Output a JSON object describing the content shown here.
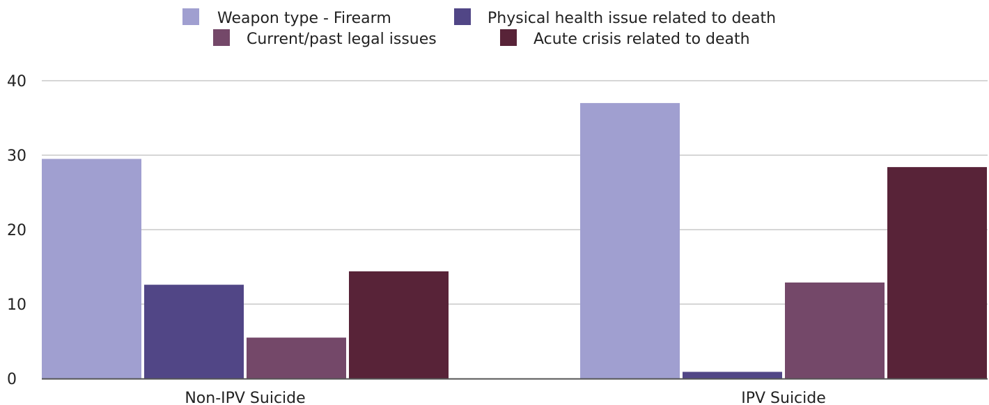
{
  "chart_data": {
    "type": "bar",
    "categories": [
      "Non-IPV Suicide",
      "IPV Suicide"
    ],
    "series": [
      {
        "name": "Weapon type - Firearm",
        "color": "#a09fd0",
        "values": [
          29.5,
          37
        ]
      },
      {
        "name": "Physical health issue related to death",
        "color": "#514686",
        "values": [
          12.6,
          0.9
        ]
      },
      {
        "name": "Current/past legal issues",
        "color": "#744869",
        "values": [
          5.5,
          12.9
        ]
      },
      {
        "name": "Acute crisis related to death",
        "color": "#582338",
        "values": [
          14.4,
          28.4
        ]
      }
    ],
    "ylim": [
      0,
      40
    ],
    "yticks": [
      "0",
      "10",
      "20",
      "30",
      "40"
    ],
    "title": "",
    "xlabel": "",
    "ylabel": "",
    "grid": true,
    "legend_position": "top-center"
  }
}
